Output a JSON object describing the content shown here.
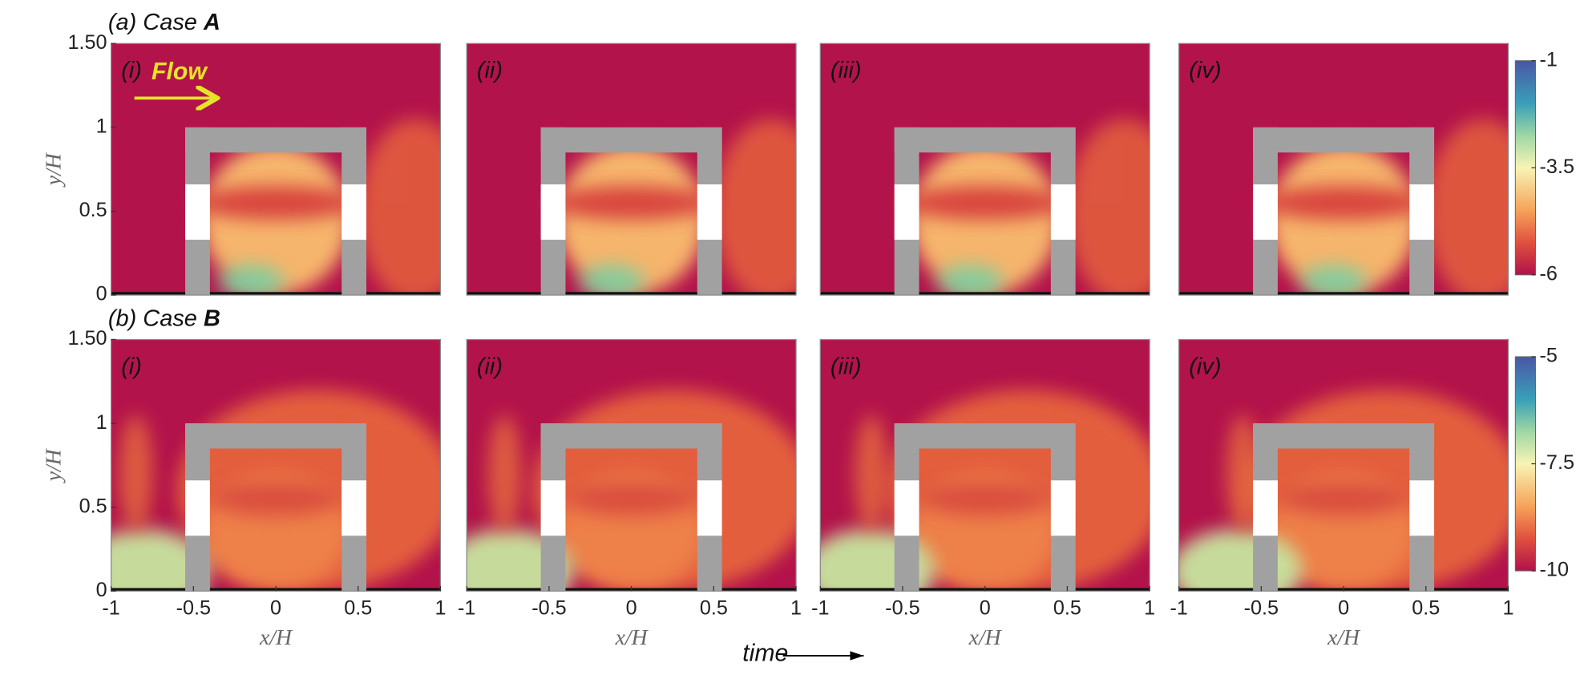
{
  "rows": [
    {
      "label": "(a) Case ",
      "label_bold": "A",
      "panels": [
        "(i)",
        "(ii)",
        "(iii)",
        "(iv)"
      ],
      "colorbar_ticks": [
        -1,
        -3.5,
        -6
      ]
    },
    {
      "label": "(b) Case ",
      "label_bold": "B",
      "panels": [
        "(i)",
        "(ii)",
        "(iii)",
        "(iv)"
      ],
      "colorbar_ticks": [
        -5,
        -7.5,
        -10
      ]
    }
  ],
  "annotation": "Flow",
  "y_axis": {
    "label": "y/H",
    "ticks": [
      {
        "value": 1.5,
        "label": "1.50"
      },
      1,
      0.5,
      0
    ]
  },
  "x_axis": {
    "label": "x/H",
    "ticks": [
      -1,
      -0.5,
      0,
      0.5,
      1
    ]
  },
  "time_label": "time"
}
